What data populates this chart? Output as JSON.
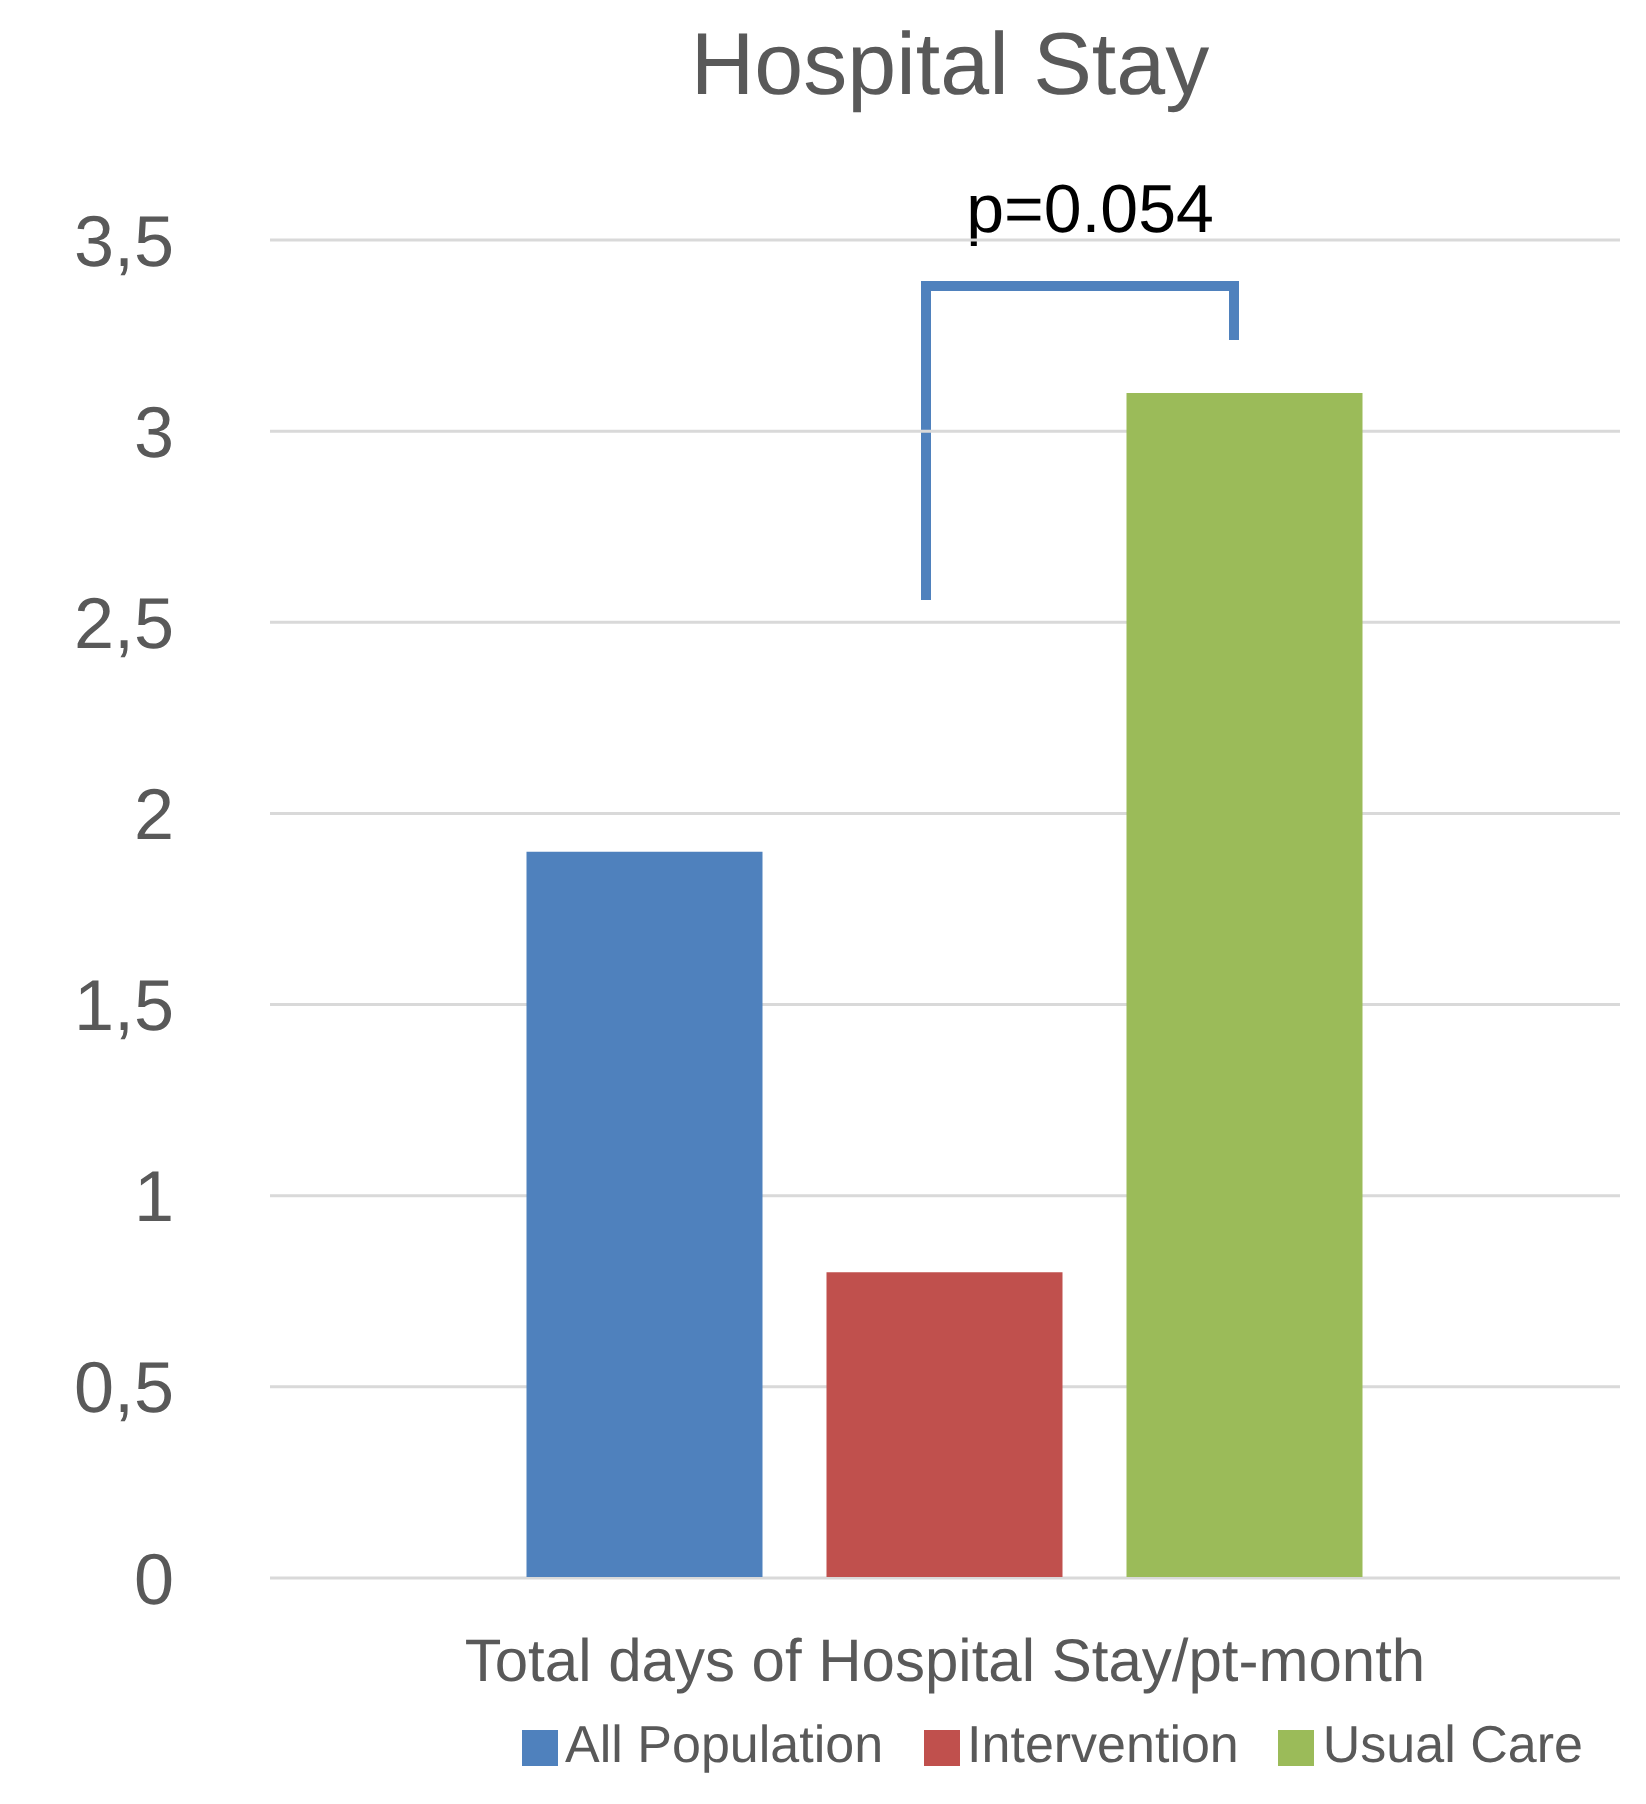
{
  "chart_data": {
    "type": "bar",
    "title": "Hospital Stay",
    "categories": [
      "Total days of Hospital Stay/pt-month"
    ],
    "series": [
      {
        "name": "All Population",
        "color": "#4f81bd",
        "values": [
          1.9
        ]
      },
      {
        "name": "Intervention",
        "color": "#c0504d",
        "values": [
          0.8
        ]
      },
      {
        "name": "Usual Care",
        "color": "#9bbb59",
        "values": [
          3.1
        ]
      }
    ],
    "ylim": [
      0,
      3.5
    ],
    "yticks": [
      0,
      {
        "value": 0.5,
        "label": "0,5"
      },
      1,
      {
        "value": 1.5,
        "label": "1,5"
      },
      2,
      {
        "value": 2.5,
        "label": "2,5"
      },
      3,
      {
        "value": 3.5,
        "label": "3,5"
      }
    ],
    "grid": "y",
    "legend": "bottom",
    "annotations": [
      "p=0.054"
    ]
  }
}
